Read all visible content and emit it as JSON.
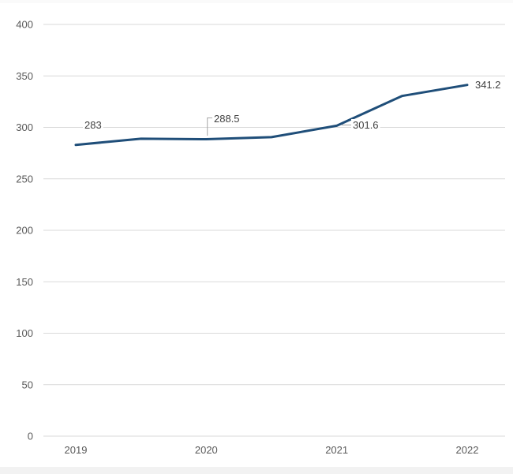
{
  "page": {
    "background": "#ffffff",
    "top_strip_color": "#fafafa",
    "bottom_strip_color": "#f2f2f2"
  },
  "chart_data": {
    "type": "line",
    "title": "",
    "xlabel": "",
    "ylabel": "",
    "x": [
      2019,
      2019.5,
      2020,
      2020.5,
      2021,
      2021.5,
      2022
    ],
    "values": [
      283,
      289,
      288.5,
      290.5,
      301.6,
      330.5,
      341.2
    ],
    "xticks": [
      "2019",
      "2020",
      "2021",
      "2022"
    ],
    "xtick_years": [
      2019,
      2020,
      2021,
      2022
    ],
    "yticks": [
      0,
      50,
      100,
      150,
      200,
      250,
      300,
      350,
      400
    ],
    "ylim": [
      0,
      400
    ],
    "grid": "horizontal-only",
    "legend": "none",
    "data_labels": [
      {
        "x": 2019,
        "value": 283,
        "text": "283",
        "leader": "none"
      },
      {
        "x": 2020,
        "value": 288.5,
        "text": "288.5",
        "leader": "bracket"
      },
      {
        "x": 2021,
        "value": 301.6,
        "text": "301.6",
        "leader": "dash"
      },
      {
        "x": 2022,
        "value": 341.2,
        "text": "341.2",
        "leader": "none"
      }
    ],
    "colors": {
      "line": "#1f4e79",
      "grid": "#d9d9d9",
      "tick_label": "#595959",
      "data_label": "#3f3f3f",
      "leader": "#a6a6a6"
    }
  }
}
